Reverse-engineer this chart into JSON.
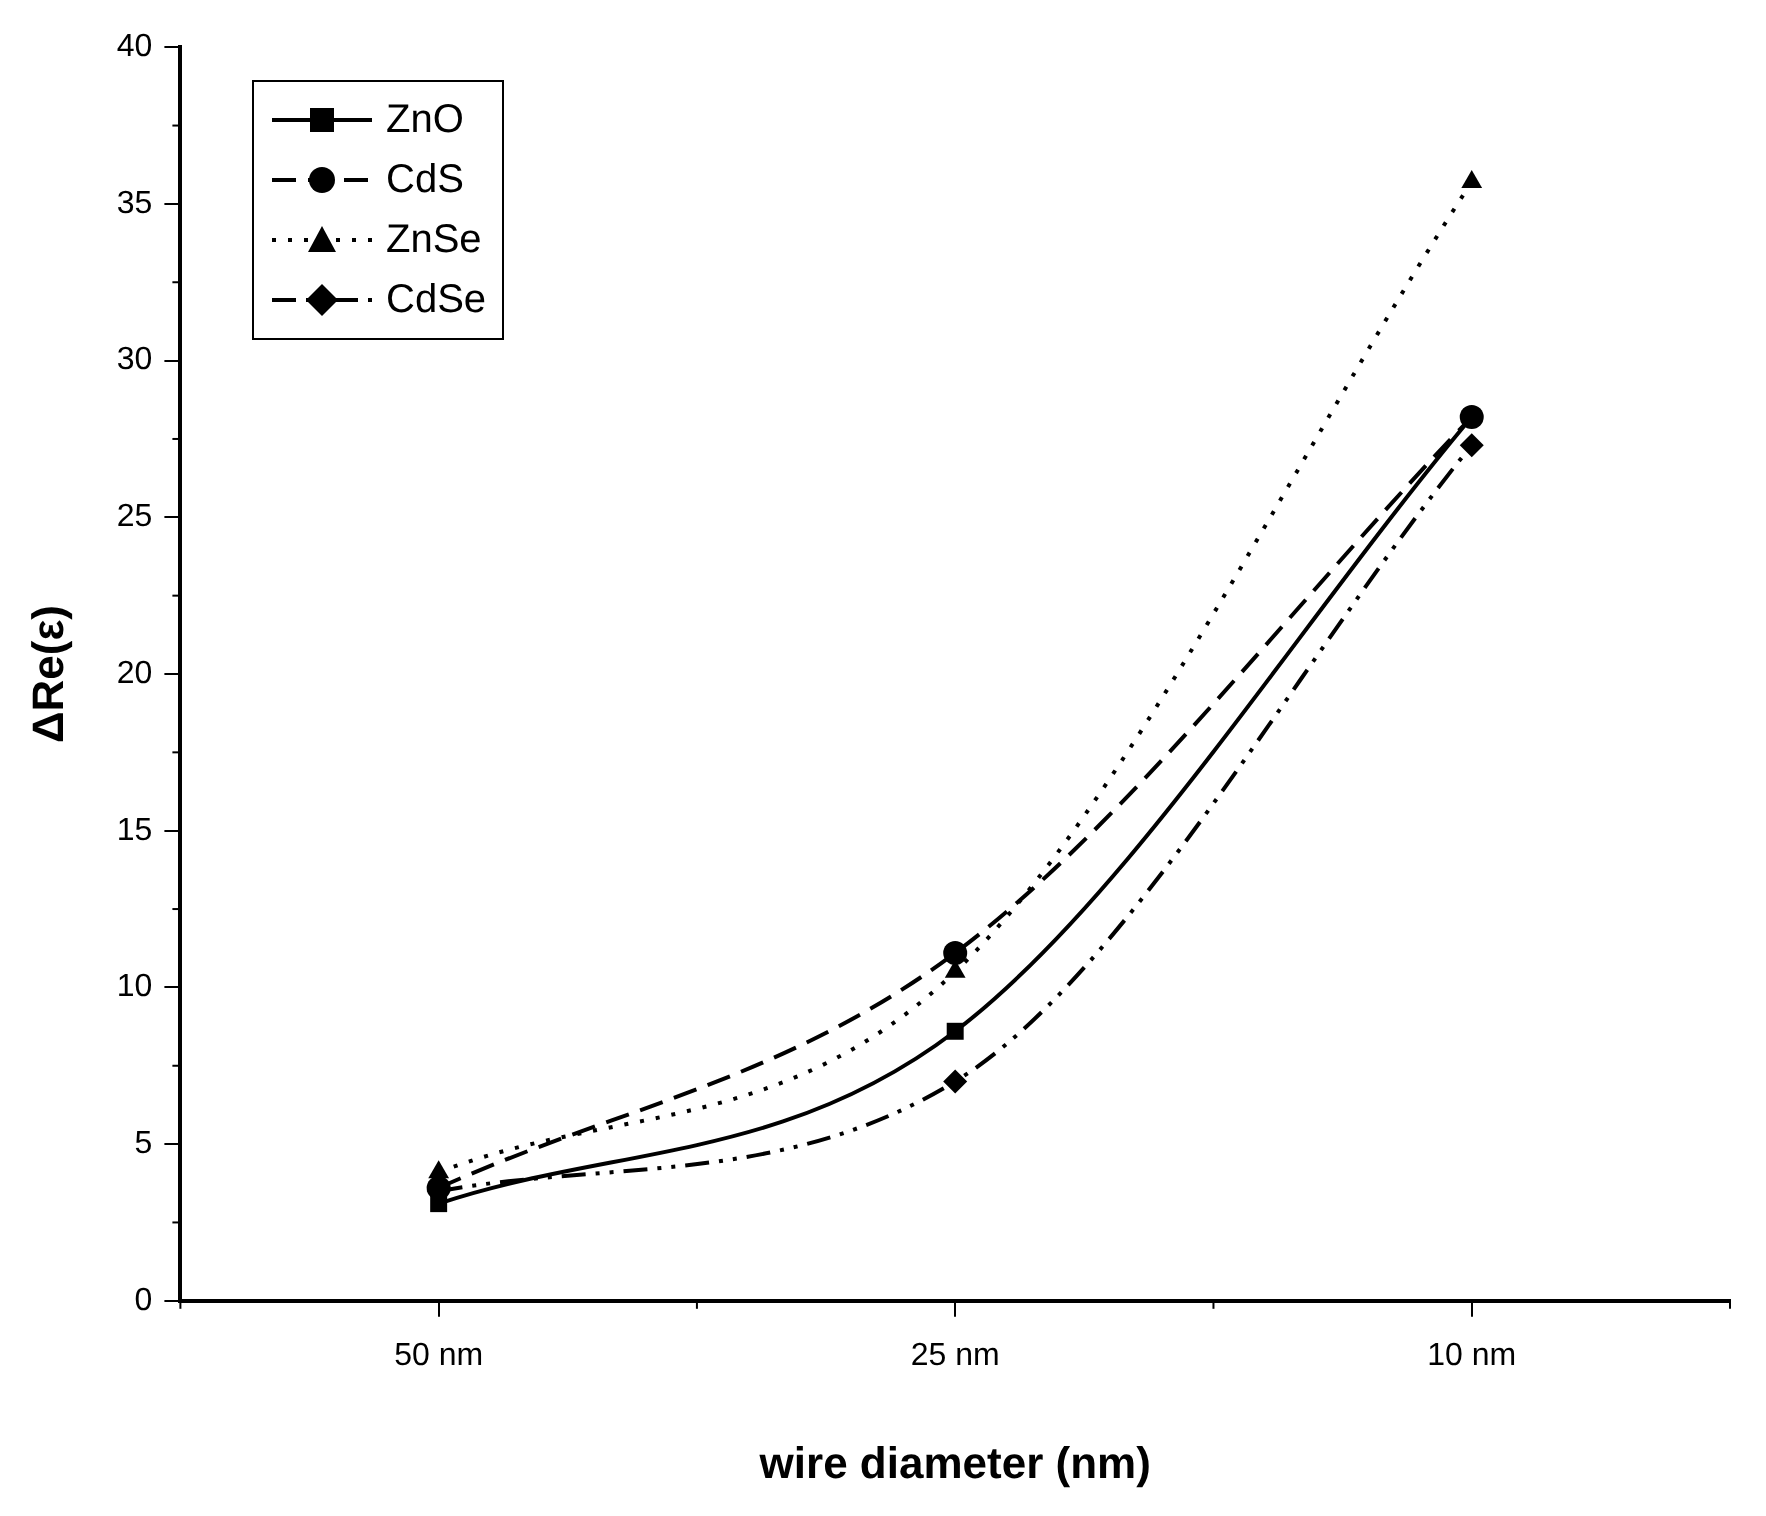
{
  "chart_data": {
    "type": "line",
    "xlabel": "wire diameter (nm)",
    "ylabel": "ΔRe(ε)",
    "categories": [
      "50 nm",
      "25 nm",
      "10 nm"
    ],
    "series": [
      {
        "name": "ZnO",
        "color": "#000000",
        "marker": "square",
        "line_style": "solid",
        "values": [
          3.1,
          8.6,
          28.2
        ]
      },
      {
        "name": "CdS",
        "color": "#000000",
        "marker": "circle",
        "line_style": "dashed",
        "values": [
          3.6,
          11.1,
          28.2
        ]
      },
      {
        "name": "ZnSe",
        "color": "#000000",
        "marker": "triangle",
        "line_style": "dotted",
        "values": [
          4.1,
          10.5,
          35.7
        ]
      },
      {
        "name": "CdSe",
        "color": "#000000",
        "marker": "diamond",
        "line_style": "dashdot",
        "values": [
          3.5,
          7.0,
          27.3
        ]
      }
    ],
    "ylim": [
      0,
      40
    ],
    "yticks": [
      0,
      5,
      10,
      15,
      20,
      25,
      30,
      35,
      40
    ],
    "grid": false,
    "legend": "top left"
  }
}
